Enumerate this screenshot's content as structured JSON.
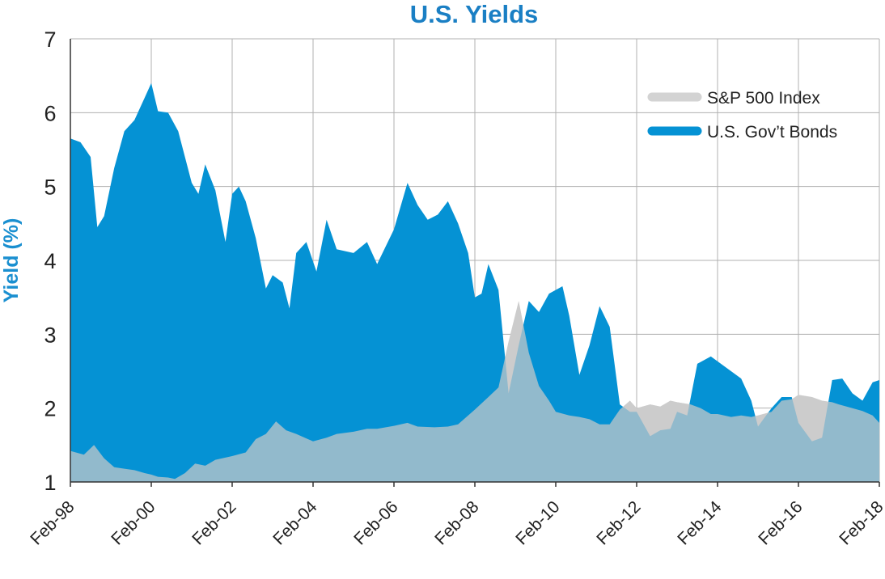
{
  "chart_data": {
    "type": "area",
    "title": "U.S. Yields",
    "xlabel": "",
    "ylabel": "Yield (%)",
    "ylim": [
      1,
      7
    ],
    "yticks": [
      "1",
      "2",
      "3",
      "4",
      "5",
      "6",
      "7"
    ],
    "xlim": [
      "1998-02",
      "2018-02"
    ],
    "xticks": [
      "Feb-98",
      "Feb-00",
      "Feb-02",
      "Feb-04",
      "Feb-06",
      "Feb-08",
      "Feb-10",
      "Feb-12",
      "Feb-14",
      "Feb-16",
      "Feb-18"
    ],
    "grid": true,
    "legend_position": "top-right",
    "series": [
      {
        "name": "S&P 500 Index",
        "color": "#d3d3d3",
        "points": [
          [
            "1998-02",
            1.42
          ],
          [
            "1998-06",
            1.37
          ],
          [
            "1998-09",
            1.5
          ],
          [
            "1998-12",
            1.32
          ],
          [
            "1999-03",
            1.2
          ],
          [
            "1999-06",
            1.18
          ],
          [
            "1999-09",
            1.16
          ],
          [
            "1999-12",
            1.12
          ],
          [
            "2000-02",
            1.1
          ],
          [
            "2000-04",
            1.07
          ],
          [
            "2000-07",
            1.06
          ],
          [
            "2000-09",
            1.04
          ],
          [
            "2000-12",
            1.12
          ],
          [
            "2001-03",
            1.25
          ],
          [
            "2001-06",
            1.22
          ],
          [
            "2001-09",
            1.3
          ],
          [
            "2002-02",
            1.35
          ],
          [
            "2002-06",
            1.4
          ],
          [
            "2002-09",
            1.58
          ],
          [
            "2002-12",
            1.65
          ],
          [
            "2003-03",
            1.82
          ],
          [
            "2003-06",
            1.7
          ],
          [
            "2003-09",
            1.65
          ],
          [
            "2004-02",
            1.55
          ],
          [
            "2004-06",
            1.6
          ],
          [
            "2004-09",
            1.65
          ],
          [
            "2005-02",
            1.68
          ],
          [
            "2005-06",
            1.72
          ],
          [
            "2005-09",
            1.72
          ],
          [
            "2006-02",
            1.76
          ],
          [
            "2006-06",
            1.8
          ],
          [
            "2006-09",
            1.75
          ],
          [
            "2007-02",
            1.74
          ],
          [
            "2007-06",
            1.75
          ],
          [
            "2007-09",
            1.78
          ],
          [
            "2008-02",
            1.98
          ],
          [
            "2008-06",
            2.15
          ],
          [
            "2008-09",
            2.28
          ],
          [
            "2008-12",
            2.9
          ],
          [
            "2009-03",
            3.45
          ],
          [
            "2009-06",
            2.75
          ],
          [
            "2009-09",
            2.3
          ],
          [
            "2009-12",
            2.1
          ],
          [
            "2010-02",
            1.95
          ],
          [
            "2010-06",
            1.9
          ],
          [
            "2010-09",
            1.88
          ],
          [
            "2010-12",
            1.85
          ],
          [
            "2011-03",
            1.78
          ],
          [
            "2011-06",
            1.78
          ],
          [
            "2011-09",
            1.98
          ],
          [
            "2011-12",
            2.1
          ],
          [
            "2012-02",
            2.0
          ],
          [
            "2012-06",
            2.05
          ],
          [
            "2012-09",
            2.02
          ],
          [
            "2012-12",
            2.1
          ],
          [
            "2013-02",
            2.08
          ],
          [
            "2013-06",
            2.05
          ],
          [
            "2013-09",
            2.0
          ],
          [
            "2013-12",
            1.92
          ],
          [
            "2014-02",
            1.92
          ],
          [
            "2014-06",
            1.88
          ],
          [
            "2014-09",
            1.9
          ],
          [
            "2014-12",
            1.88
          ],
          [
            "2015-02",
            1.9
          ],
          [
            "2015-06",
            1.95
          ],
          [
            "2015-09",
            2.1
          ],
          [
            "2015-12",
            2.12
          ],
          [
            "2016-02",
            2.18
          ],
          [
            "2016-06",
            2.15
          ],
          [
            "2016-09",
            2.1
          ],
          [
            "2016-12",
            2.08
          ],
          [
            "2017-02",
            2.05
          ],
          [
            "2017-06",
            2.0
          ],
          [
            "2017-09",
            1.96
          ],
          [
            "2017-12",
            1.9
          ],
          [
            "2018-02",
            1.8
          ]
        ]
      },
      {
        "name": "U.S. Gov’t Bonds",
        "color": "#0592d4",
        "points": [
          [
            "1998-02",
            5.65
          ],
          [
            "1998-05",
            5.6
          ],
          [
            "1998-08",
            5.4
          ],
          [
            "1998-10",
            4.45
          ],
          [
            "1998-12",
            4.6
          ],
          [
            "1999-03",
            5.25
          ],
          [
            "1999-06",
            5.75
          ],
          [
            "1999-09",
            5.9
          ],
          [
            "1999-12",
            6.2
          ],
          [
            "2000-02",
            6.4
          ],
          [
            "2000-04",
            6.02
          ],
          [
            "2000-07",
            6.0
          ],
          [
            "2000-10",
            5.75
          ],
          [
            "2001-02",
            5.05
          ],
          [
            "2001-04",
            4.9
          ],
          [
            "2001-06",
            5.3
          ],
          [
            "2001-09",
            4.95
          ],
          [
            "2001-12",
            4.25
          ],
          [
            "2002-02",
            4.9
          ],
          [
            "2002-04",
            5.0
          ],
          [
            "2002-06",
            4.8
          ],
          [
            "2002-09",
            4.3
          ],
          [
            "2002-12",
            3.62
          ],
          [
            "2003-02",
            3.8
          ],
          [
            "2003-05",
            3.7
          ],
          [
            "2003-07",
            3.35
          ],
          [
            "2003-09",
            4.1
          ],
          [
            "2003-12",
            4.25
          ],
          [
            "2004-03",
            3.85
          ],
          [
            "2004-06",
            4.55
          ],
          [
            "2004-09",
            4.15
          ],
          [
            "2005-02",
            4.1
          ],
          [
            "2005-06",
            4.25
          ],
          [
            "2005-09",
            3.95
          ],
          [
            "2006-02",
            4.42
          ],
          [
            "2006-06",
            5.05
          ],
          [
            "2006-09",
            4.75
          ],
          [
            "2006-12",
            4.55
          ],
          [
            "2007-03",
            4.62
          ],
          [
            "2007-06",
            4.8
          ],
          [
            "2007-09",
            4.5
          ],
          [
            "2007-12",
            4.1
          ],
          [
            "2008-02",
            3.5
          ],
          [
            "2008-04",
            3.55
          ],
          [
            "2008-06",
            3.95
          ],
          [
            "2008-09",
            3.6
          ],
          [
            "2008-12",
            2.2
          ],
          [
            "2009-03",
            2.85
          ],
          [
            "2009-06",
            3.45
          ],
          [
            "2009-09",
            3.3
          ],
          [
            "2009-12",
            3.55
          ],
          [
            "2010-04",
            3.65
          ],
          [
            "2010-06",
            3.25
          ],
          [
            "2010-09",
            2.45
          ],
          [
            "2010-12",
            2.85
          ],
          [
            "2011-03",
            3.38
          ],
          [
            "2011-06",
            3.1
          ],
          [
            "2011-09",
            2.05
          ],
          [
            "2011-12",
            1.95
          ],
          [
            "2012-02",
            1.95
          ],
          [
            "2012-06",
            1.62
          ],
          [
            "2012-09",
            1.7
          ],
          [
            "2012-12",
            1.72
          ],
          [
            "2013-02",
            1.95
          ],
          [
            "2013-05",
            1.9
          ],
          [
            "2013-08",
            2.6
          ],
          [
            "2013-12",
            2.7
          ],
          [
            "2014-03",
            2.6
          ],
          [
            "2014-06",
            2.5
          ],
          [
            "2014-09",
            2.4
          ],
          [
            "2014-12",
            2.1
          ],
          [
            "2015-02",
            1.75
          ],
          [
            "2015-06",
            2.0
          ],
          [
            "2015-09",
            2.15
          ],
          [
            "2015-12",
            2.15
          ],
          [
            "2016-02",
            1.8
          ],
          [
            "2016-06",
            1.55
          ],
          [
            "2016-09",
            1.6
          ],
          [
            "2016-12",
            2.38
          ],
          [
            "2017-03",
            2.4
          ],
          [
            "2017-06",
            2.2
          ],
          [
            "2017-09",
            2.1
          ],
          [
            "2017-12",
            2.35
          ],
          [
            "2018-02",
            2.38
          ]
        ]
      }
    ]
  }
}
